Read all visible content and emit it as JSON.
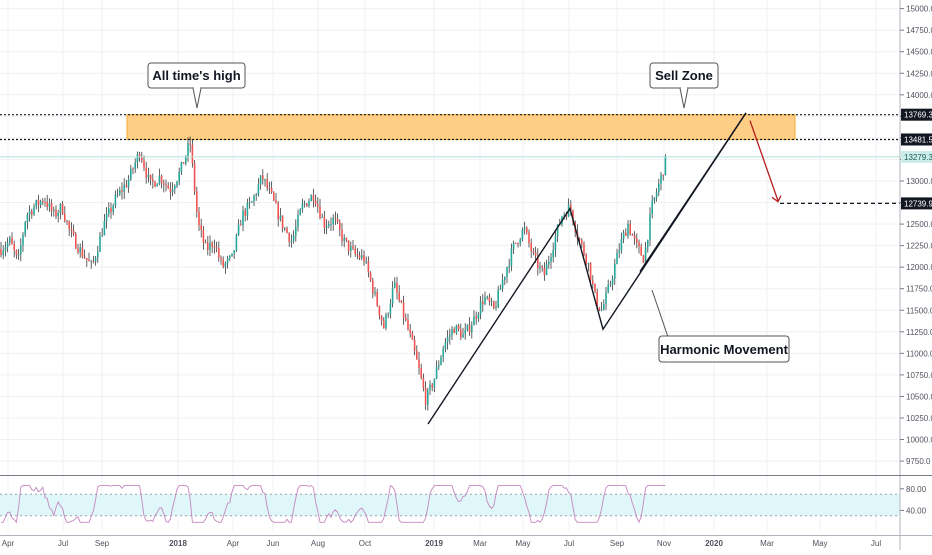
{
  "chart_data": {
    "type": "candlestick",
    "price_axis": {
      "range": [
        9600,
        15100
      ],
      "ticks": [
        15000,
        14750,
        14500,
        14250,
        14000,
        13750,
        13500,
        13250,
        13000,
        12750,
        12500,
        12250,
        12000,
        11750,
        11500,
        11250,
        11000,
        10750,
        10500,
        10250,
        10000,
        9750
      ],
      "tick_labels": [
        "15000.0",
        "14750.0",
        "14500.0",
        "14250.0",
        "14000.0",
        "13750.0",
        "13500.0",
        "13250.0",
        "13000.0",
        "12750.0",
        "12500.0",
        "12250.0",
        "12000.0",
        "11750.0",
        "11500.0",
        "11250.0",
        "11000.0",
        "10750.0",
        "10500.0",
        "10250.0",
        "10000.0",
        "9750.0"
      ]
    },
    "rsi_axis": {
      "range": [
        0,
        100
      ],
      "ticks": [
        80,
        40
      ],
      "tick_labels": [
        "80.00",
        "40.00"
      ],
      "band": [
        30,
        70
      ]
    },
    "time_axis": {
      "labels": [
        "Apr",
        "Jul",
        "Sep",
        "2018",
        "Apr",
        "Jun",
        "Aug",
        "Oct",
        "2019",
        "Mar",
        "May",
        "Jul",
        "Sep",
        "Nov",
        "2020",
        "Mar",
        "May",
        "Jul"
      ],
      "bold": [
        "2018",
        "2019",
        "2020"
      ]
    },
    "price_labels": [
      {
        "value": 13769.3,
        "text": "13769.3",
        "style": "dark"
      },
      {
        "value": 13481.5,
        "text": "13481.5",
        "style": "dark"
      },
      {
        "value": 13279.3,
        "text": "13279.3",
        "style": "last"
      },
      {
        "value": 12739.9,
        "text": "12739.9",
        "style": "dark"
      }
    ],
    "annotations": {
      "ath": "All time's high",
      "sell": "Sell Zone",
      "harmonic": "Harmonic Movement"
    },
    "zone": {
      "from": 13481.5,
      "to": 13769.3
    },
    "colors": {
      "up": "#26a69a",
      "down": "#ef5350",
      "wick": "#3a3a3a",
      "zone_fill": "#ffcc80",
      "zone_stroke": "#f5a623",
      "rsi_line": "#c586c0",
      "rsi_band": "#e0f7fa",
      "projection": "#b71c1c",
      "grid": "#eef0f3"
    }
  }
}
